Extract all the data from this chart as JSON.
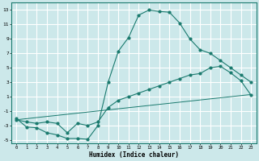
{
  "xlabel": "Humidex (Indice chaleur)",
  "ylabel": "",
  "bg_color": "#cce8ea",
  "grid_color": "#ffffff",
  "line_color": "#1a7a6e",
  "xlim": [
    -0.5,
    23.5
  ],
  "ylim": [
    -5.5,
    14.0
  ],
  "xticks": [
    0,
    1,
    2,
    3,
    4,
    5,
    6,
    7,
    8,
    9,
    10,
    11,
    12,
    13,
    14,
    15,
    16,
    17,
    18,
    19,
    20,
    21,
    22,
    23
  ],
  "yticks": [
    -5,
    -3,
    -1,
    1,
    3,
    5,
    7,
    9,
    11,
    13
  ],
  "line1_x": [
    0,
    1,
    2,
    3,
    4,
    5,
    6,
    7,
    8,
    9,
    10,
    11,
    12,
    13,
    14,
    15,
    16,
    17,
    18,
    19,
    20,
    21,
    22,
    23
  ],
  "line1_y": [
    -2.0,
    -3.2,
    -3.3,
    -4.0,
    -4.3,
    -4.8,
    -4.8,
    -4.9,
    -3.0,
    3.0,
    7.3,
    9.2,
    12.3,
    13.0,
    12.8,
    12.7,
    11.2,
    9.0,
    7.5,
    7.0,
    6.0,
    5.0,
    4.0,
    3.0
  ],
  "line2_x": [
    0,
    1,
    2,
    3,
    4,
    5,
    6,
    7,
    8,
    9,
    10,
    11,
    12,
    13,
    14,
    15,
    16,
    17,
    18,
    19,
    20,
    21,
    22,
    23
  ],
  "line2_y": [
    -2.2,
    -2.5,
    -2.7,
    -2.5,
    -2.7,
    -4.0,
    -2.7,
    -3.0,
    -2.5,
    -0.5,
    0.5,
    1.0,
    1.5,
    2.0,
    2.5,
    3.0,
    3.5,
    4.0,
    4.2,
    5.0,
    5.2,
    4.3,
    3.2,
    1.2
  ],
  "line3_x": [
    0,
    23
  ],
  "line3_y": [
    -2.2,
    1.3
  ]
}
